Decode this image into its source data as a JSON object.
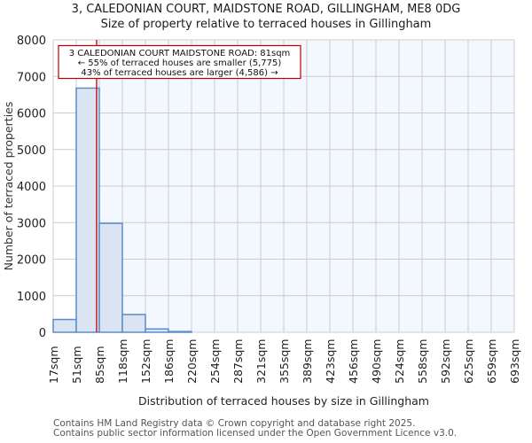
{
  "title": {
    "line1": "3, CALEDONIAN COURT, MAIDSTONE ROAD, GILLINGHAM, ME8 0DG",
    "line2": "Size of property relative to terraced houses in Gillingham"
  },
  "annotation": {
    "line1": "3 CALEDONIAN COURT MAIDSTONE ROAD: 81sqm",
    "line2": "← 55% of terraced houses are smaller (5,775)",
    "line3": "43% of terraced houses are larger (4,586) →"
  },
  "footer": {
    "line1": "Contains HM Land Registry data © Crown copyright and database right 2025.",
    "line2": "Contains public sector information licensed under the Open Government Licence v3.0."
  },
  "colors": {
    "bar_fill": "#dae4f3",
    "bar_edge": "#5b8ccc",
    "highlight_bg": "#f3f7fe",
    "marker": "#c00000",
    "grid": "#cccccc"
  },
  "chart_data": {
    "type": "bar",
    "title": "3, CALEDONIAN COURT, MAIDSTONE ROAD, GILLINGHAM, ME8 0DG — Size of property relative to terraced houses in Gillingham",
    "xlabel": "Distribution of terraced houses by size in Gillingham",
    "ylabel": "Number of terraced properties",
    "categories": [
      "17sqm",
      "51sqm",
      "85sqm",
      "118sqm",
      "152sqm",
      "186sqm",
      "220sqm",
      "254sqm",
      "287sqm",
      "321sqm",
      "355sqm",
      "389sqm",
      "423sqm",
      "456sqm",
      "490sqm",
      "524sqm",
      "558sqm",
      "592sqm",
      "625sqm",
      "659sqm",
      "693sqm"
    ],
    "bin_edges": [
      17,
      51,
      85,
      118,
      152,
      186,
      220,
      254,
      287,
      321,
      355,
      389,
      423,
      456,
      490,
      524,
      558,
      592,
      625,
      659,
      693
    ],
    "values": [
      350,
      6680,
      2980,
      485,
      90,
      20,
      0,
      0,
      0,
      0,
      0,
      0,
      0,
      0,
      0,
      0,
      0,
      0,
      0,
      0
    ],
    "yticks": [
      0,
      1000,
      2000,
      3000,
      4000,
      5000,
      6000,
      7000,
      8000
    ],
    "ylim": [
      0,
      8000
    ],
    "marker_value": 81,
    "marker_label": "3 CALEDONIAN COURT MAIDSTONE ROAD: 81sqm",
    "grid": true,
    "legend": null
  }
}
